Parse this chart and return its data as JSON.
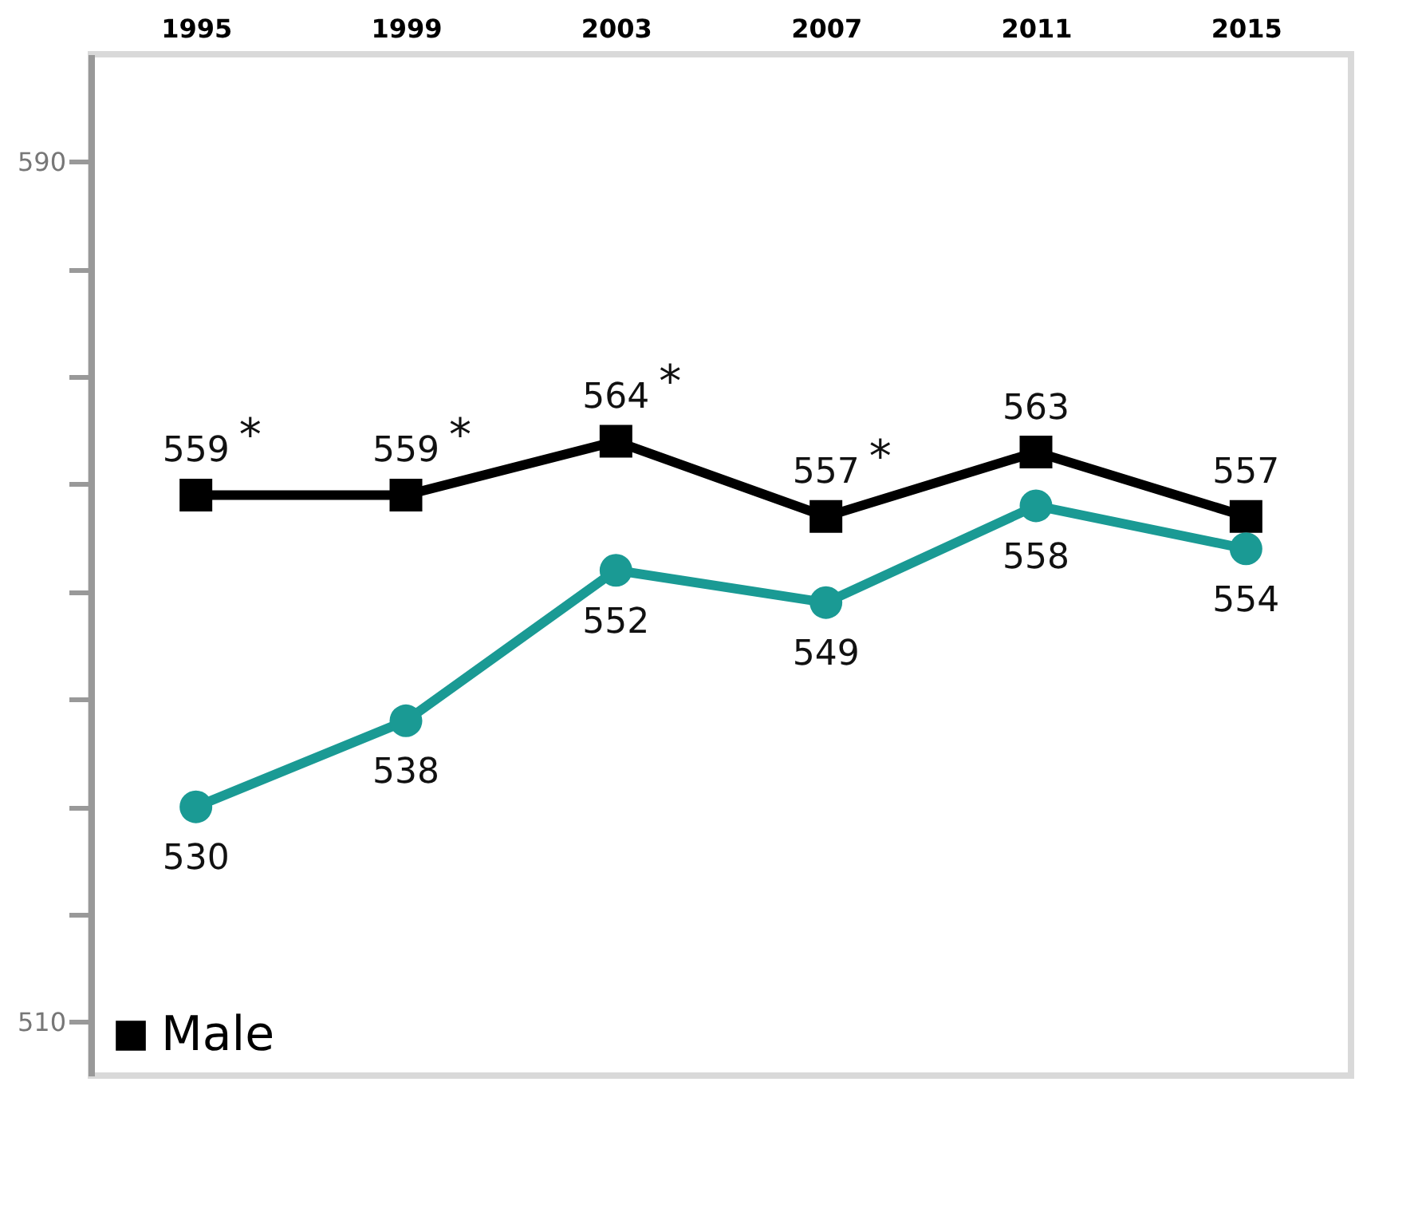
{
  "chart_data": {
    "type": "line",
    "categories": [
      "1995",
      "1999",
      "2003",
      "2007",
      "2011",
      "2015"
    ],
    "series": [
      {
        "name": "Male",
        "color": "#000000",
        "marker": "square",
        "values": [
          559,
          559,
          564,
          557,
          563,
          557
        ]
      },
      {
        "color": "#1a9a94",
        "marker": "circle",
        "values": [
          530,
          538,
          552,
          549,
          558,
          554
        ]
      }
    ],
    "ylim": [
      505,
      600
    ],
    "yticks": [
      510,
      {
        "value": 520,
        "label": null
      },
      {
        "value": 530,
        "label": null
      },
      {
        "value": 540,
        "label": null
      },
      {
        "value": 550,
        "label": null
      },
      {
        "value": 560,
        "label": null
      },
      {
        "value": 570,
        "label": null
      },
      {
        "value": 580,
        "label": null
      },
      590
    ],
    "data_labels": true,
    "grid": false,
    "legend": "bottom left",
    "line_style": "solid",
    "annotations": [
      {
        "text": "*",
        "x": "1995",
        "y": 559
      },
      {
        "text": "*",
        "x": "1999",
        "y": 559
      },
      {
        "text": "*",
        "x": "2003",
        "y": 564
      },
      {
        "text": "*",
        "x": "2007",
        "y": 557
      }
    ]
  }
}
